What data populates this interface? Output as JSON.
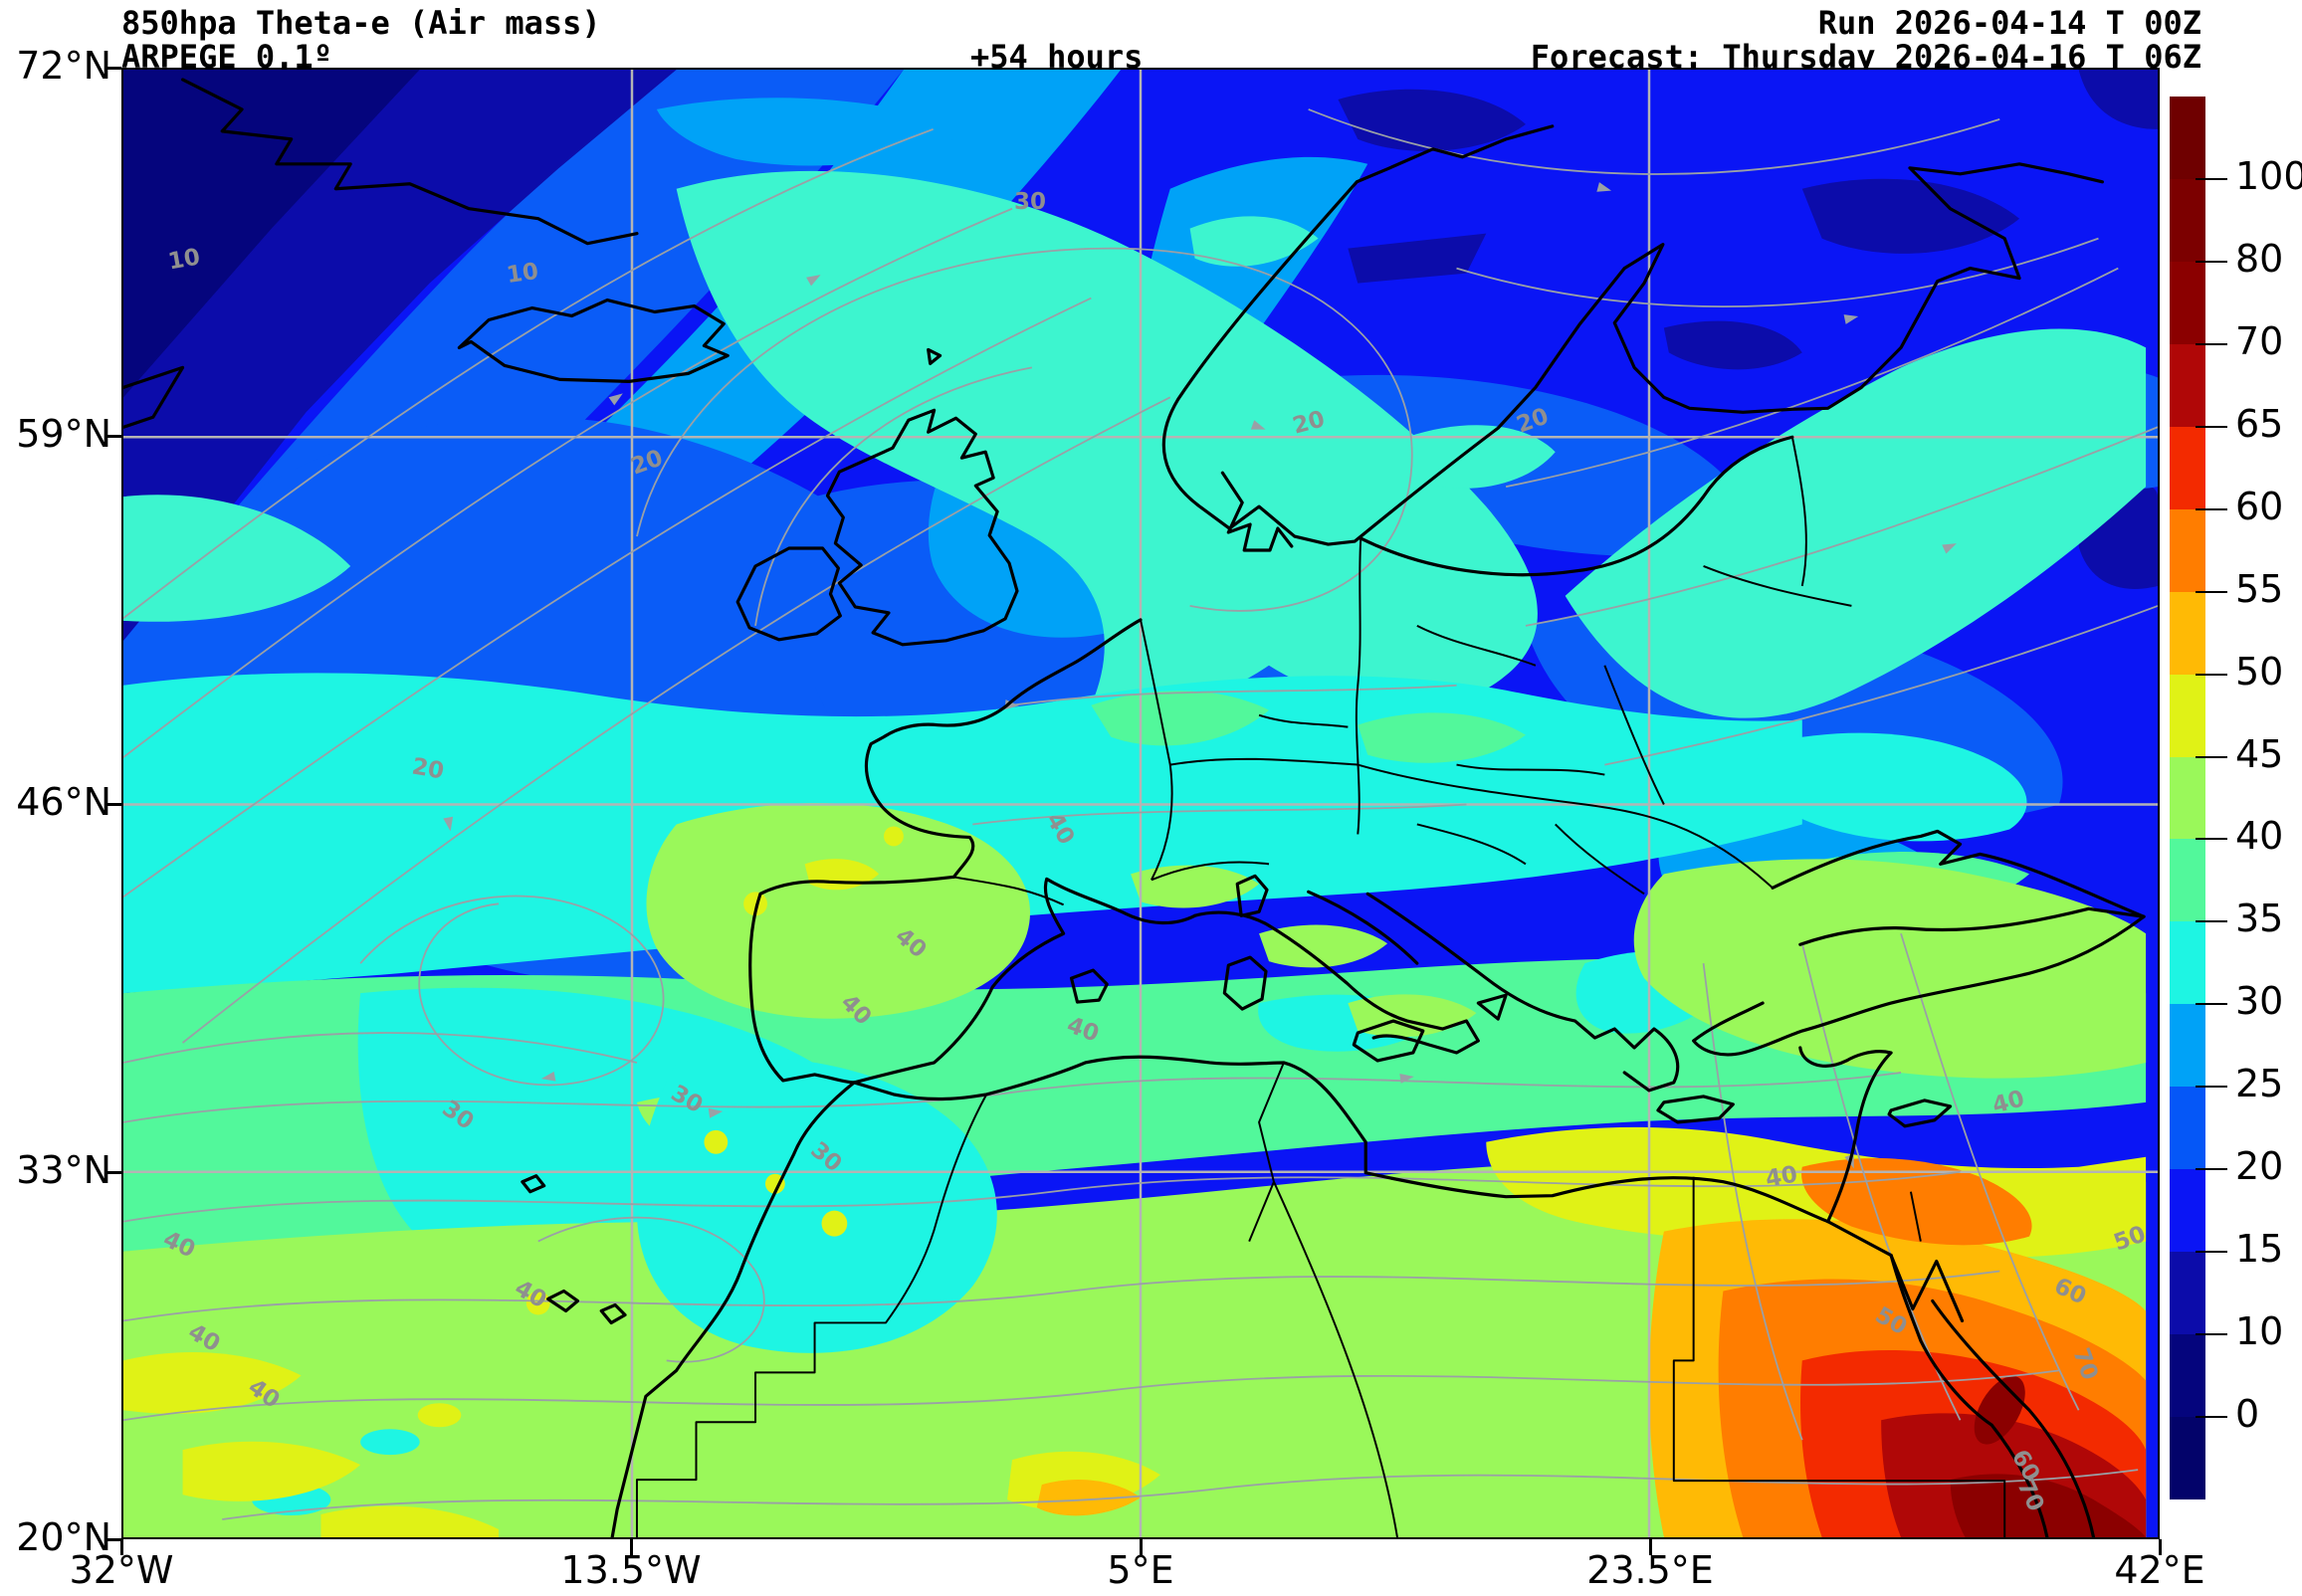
{
  "header": {
    "title": "850hpa Theta-e (Air mass)",
    "model": "ARPEGE 0.1º",
    "lead_time": "+54 hours",
    "run": "Run 2026-04-14 T 00Z",
    "forecast": "Forecast: Thursday 2026-04-16 T 06Z"
  },
  "axes": {
    "lat_labels": [
      "72°N",
      "59°N",
      "46°N",
      "33°N",
      "20°N"
    ],
    "lon_labels": [
      "32°W",
      "13.5°W",
      "5°E",
      "23.5°E",
      "42°E"
    ]
  },
  "colorbar": {
    "tick_labels": [
      "100",
      "80",
      "70",
      "65",
      "60",
      "55",
      "50",
      "45",
      "40",
      "35",
      "30",
      "25",
      "20",
      "15",
      "10",
      "0"
    ],
    "segment_colors_top_to_bottom": [
      "#6f0000",
      "#7c0000",
      "#8b0000",
      "#b00707",
      "#f32a00",
      "#ff7d00",
      "#ffba05",
      "#e0f216",
      "#9af85a",
      "#52f89b",
      "#1ef5e3",
      "#00a2f7",
      "#0557f7",
      "#0a15f5",
      "#0c0caa",
      "#05057d",
      "#03036a"
    ]
  },
  "map": {
    "gridline_color": "#b4b4b4",
    "coastline_color": "#000000",
    "streamline_color": "#9aa0a6",
    "contour_labels": [
      "10",
      "10",
      "20",
      "20",
      "20",
      "30",
      "30",
      "30",
      "30",
      "40",
      "40",
      "40",
      "40",
      "40",
      "40",
      "40",
      "40",
      "40",
      "40",
      "50",
      "50",
      "60",
      "60",
      "70",
      "70",
      "20"
    ]
  }
}
